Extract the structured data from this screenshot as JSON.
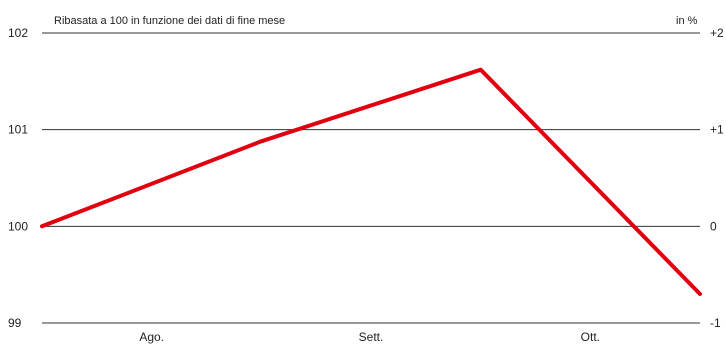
{
  "chart_data": {
    "type": "line",
    "subtitle": "Ribasata a 100 in funzione dei dati di fine mese",
    "right_unit_label": "in %",
    "x_labels": [
      "Ago.",
      "Sett.",
      "Ott."
    ],
    "y_ticks_left": [
      "102",
      "101",
      "100",
      "99"
    ],
    "y_ticks_right": [
      "+2",
      "+1",
      "0",
      "-1"
    ],
    "ylim": [
      99,
      102
    ],
    "y_tick_values": [
      102,
      101,
      100,
      99
    ],
    "grid": true,
    "series": [
      {
        "color": "#e1000f",
        "points": [
          {
            "x": "end of Jul.",
            "y": 100.0
          },
          {
            "x": "end of Aug.",
            "y": 100.88
          },
          {
            "x": "end of Sett.",
            "y": 101.62
          },
          {
            "x": "end of Ott.",
            "y": 99.3
          }
        ]
      }
    ]
  }
}
